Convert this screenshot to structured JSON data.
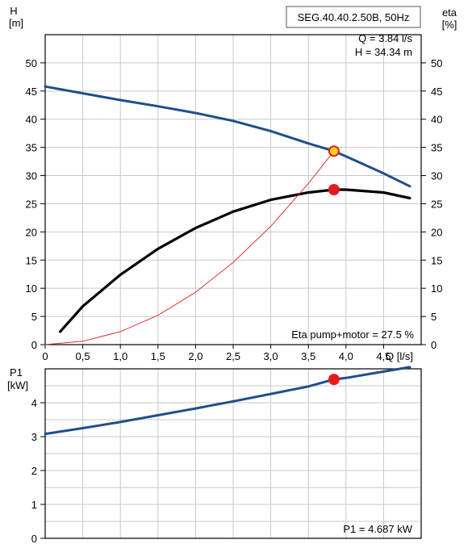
{
  "chart_data": [
    {
      "type": "line",
      "title": "SEG.40.40.2.50B, 50Hz",
      "info": [
        "Q = 3.84 l/s",
        "H = 34.34 m"
      ],
      "annotation": "Eta pump+motor = 27.5 %",
      "xlabel": "Q [l/s]",
      "ylabel_left": [
        "H",
        "[m]"
      ],
      "ylabel_right": [
        "eta",
        "[%]"
      ],
      "xlim": [
        0,
        5.0
      ],
      "ylim": [
        0,
        55
      ],
      "grid": true,
      "x_ticks": [
        "0",
        "0,5",
        "1,0",
        "1,5",
        "2,0",
        "2,5",
        "3,0",
        "3,5",
        "4,0",
        "4,5"
      ],
      "y_ticks": [
        "0",
        "5",
        "10",
        "15",
        "20",
        "25",
        "30",
        "35",
        "40",
        "45",
        "50"
      ],
      "series": [
        {
          "key": "H",
          "color": "#1f4e8c",
          "x": [
            0,
            0.5,
            1.0,
            1.5,
            2.0,
            2.5,
            3.0,
            3.5,
            3.84,
            4.0,
            4.5,
            4.85
          ],
          "y": [
            45.8,
            44.6,
            43.4,
            42.3,
            41.1,
            39.7,
            37.9,
            35.7,
            34.34,
            33.4,
            30.4,
            28.1
          ]
        },
        {
          "key": "eta",
          "color": "#000000",
          "x": [
            0.2,
            0.5,
            1.0,
            1.5,
            2.0,
            2.5,
            3.0,
            3.5,
            3.84,
            4.0,
            4.5,
            4.85
          ],
          "y": [
            2.3,
            6.8,
            12.4,
            17.0,
            20.7,
            23.6,
            25.7,
            27.0,
            27.5,
            27.5,
            27.0,
            26.0
          ]
        },
        {
          "key": "system-curve",
          "color": "#e03030",
          "x": [
            0,
            0.5,
            1.0,
            1.5,
            2.0,
            2.5,
            3.0,
            3.5,
            3.84
          ],
          "y": [
            0,
            0.6,
            2.3,
            5.2,
            9.3,
            14.6,
            21.0,
            28.6,
            34.34
          ]
        }
      ],
      "operating_points": [
        {
          "key": "H",
          "x": 3.84,
          "y": 34.34,
          "fill": "#ffd21c",
          "stroke": "#e02020"
        },
        {
          "key": "eta",
          "x": 3.84,
          "y": 27.5,
          "fill": "#e51b1b",
          "stroke": "#e51b1b"
        }
      ]
    },
    {
      "type": "line",
      "annotation": "P1 = 4.687 kW",
      "ylabel": [
        "P1",
        "[kW]"
      ],
      "xlim": [
        0,
        5.0
      ],
      "ylim": [
        0,
        5.0
      ],
      "grid": true,
      "y_ticks": [
        "0",
        "1",
        "2",
        "3",
        "4"
      ],
      "series": [
        {
          "key": "P1",
          "color": "#1f4e8c",
          "x": [
            0,
            0.5,
            1.0,
            1.5,
            2.0,
            2.5,
            3.0,
            3.5,
            3.84,
            4.0,
            4.5,
            4.85
          ],
          "y": [
            3.08,
            3.25,
            3.43,
            3.63,
            3.83,
            4.04,
            4.26,
            4.48,
            4.687,
            4.73,
            4.92,
            5.05
          ]
        }
      ],
      "operating_points": [
        {
          "key": "P1",
          "x": 3.84,
          "y": 4.687,
          "fill": "#e51b1b",
          "stroke": "#e51b1b"
        }
      ]
    }
  ]
}
